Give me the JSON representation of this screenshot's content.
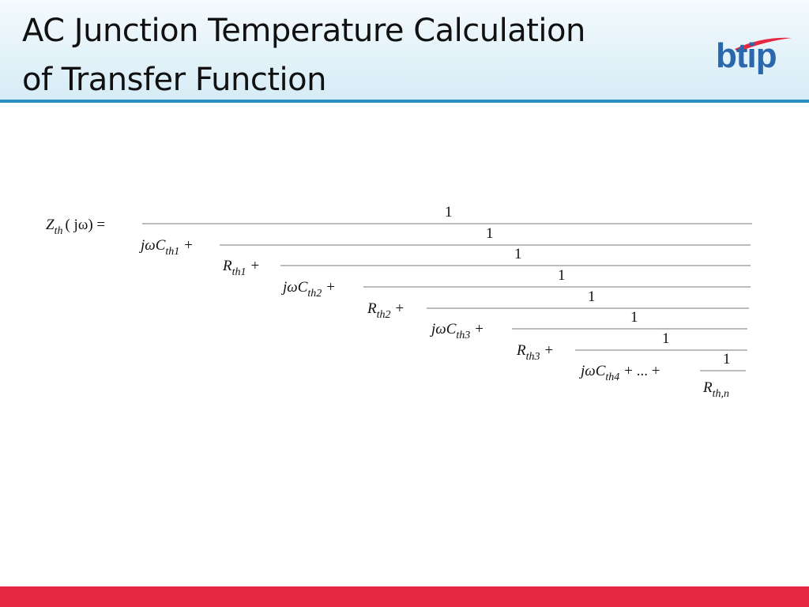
{
  "header": {
    "title_lines": [
      "AC Junction Temperature Calculation",
      "of Transfer Function"
    ],
    "logo": "btip"
  },
  "formula": {
    "lhs": {
      "symbol": "Z",
      "subscript": "th",
      "argument": "( jω) ="
    },
    "numerators": [
      "1",
      "1",
      "1",
      "1",
      "1",
      "1",
      "1",
      "1"
    ],
    "terms": [
      {
        "prefix": "jωC",
        "subscript": "th1",
        "operator": "+"
      },
      {
        "prefix": "R",
        "subscript": "th1",
        "operator": "+"
      },
      {
        "prefix": "jωC",
        "subscript": "th2",
        "operator": "+"
      },
      {
        "prefix": "R",
        "subscript": "th2",
        "operator": "+"
      },
      {
        "prefix": "jωC",
        "subscript": "th3",
        "operator": "+"
      },
      {
        "prefix": "R",
        "subscript": "th3",
        "operator": "+"
      },
      {
        "prefix": "jωC",
        "subscript": "th4",
        "operator": "+ ... +"
      },
      {
        "prefix": "R",
        "subscript": "th,n"
      }
    ]
  }
}
